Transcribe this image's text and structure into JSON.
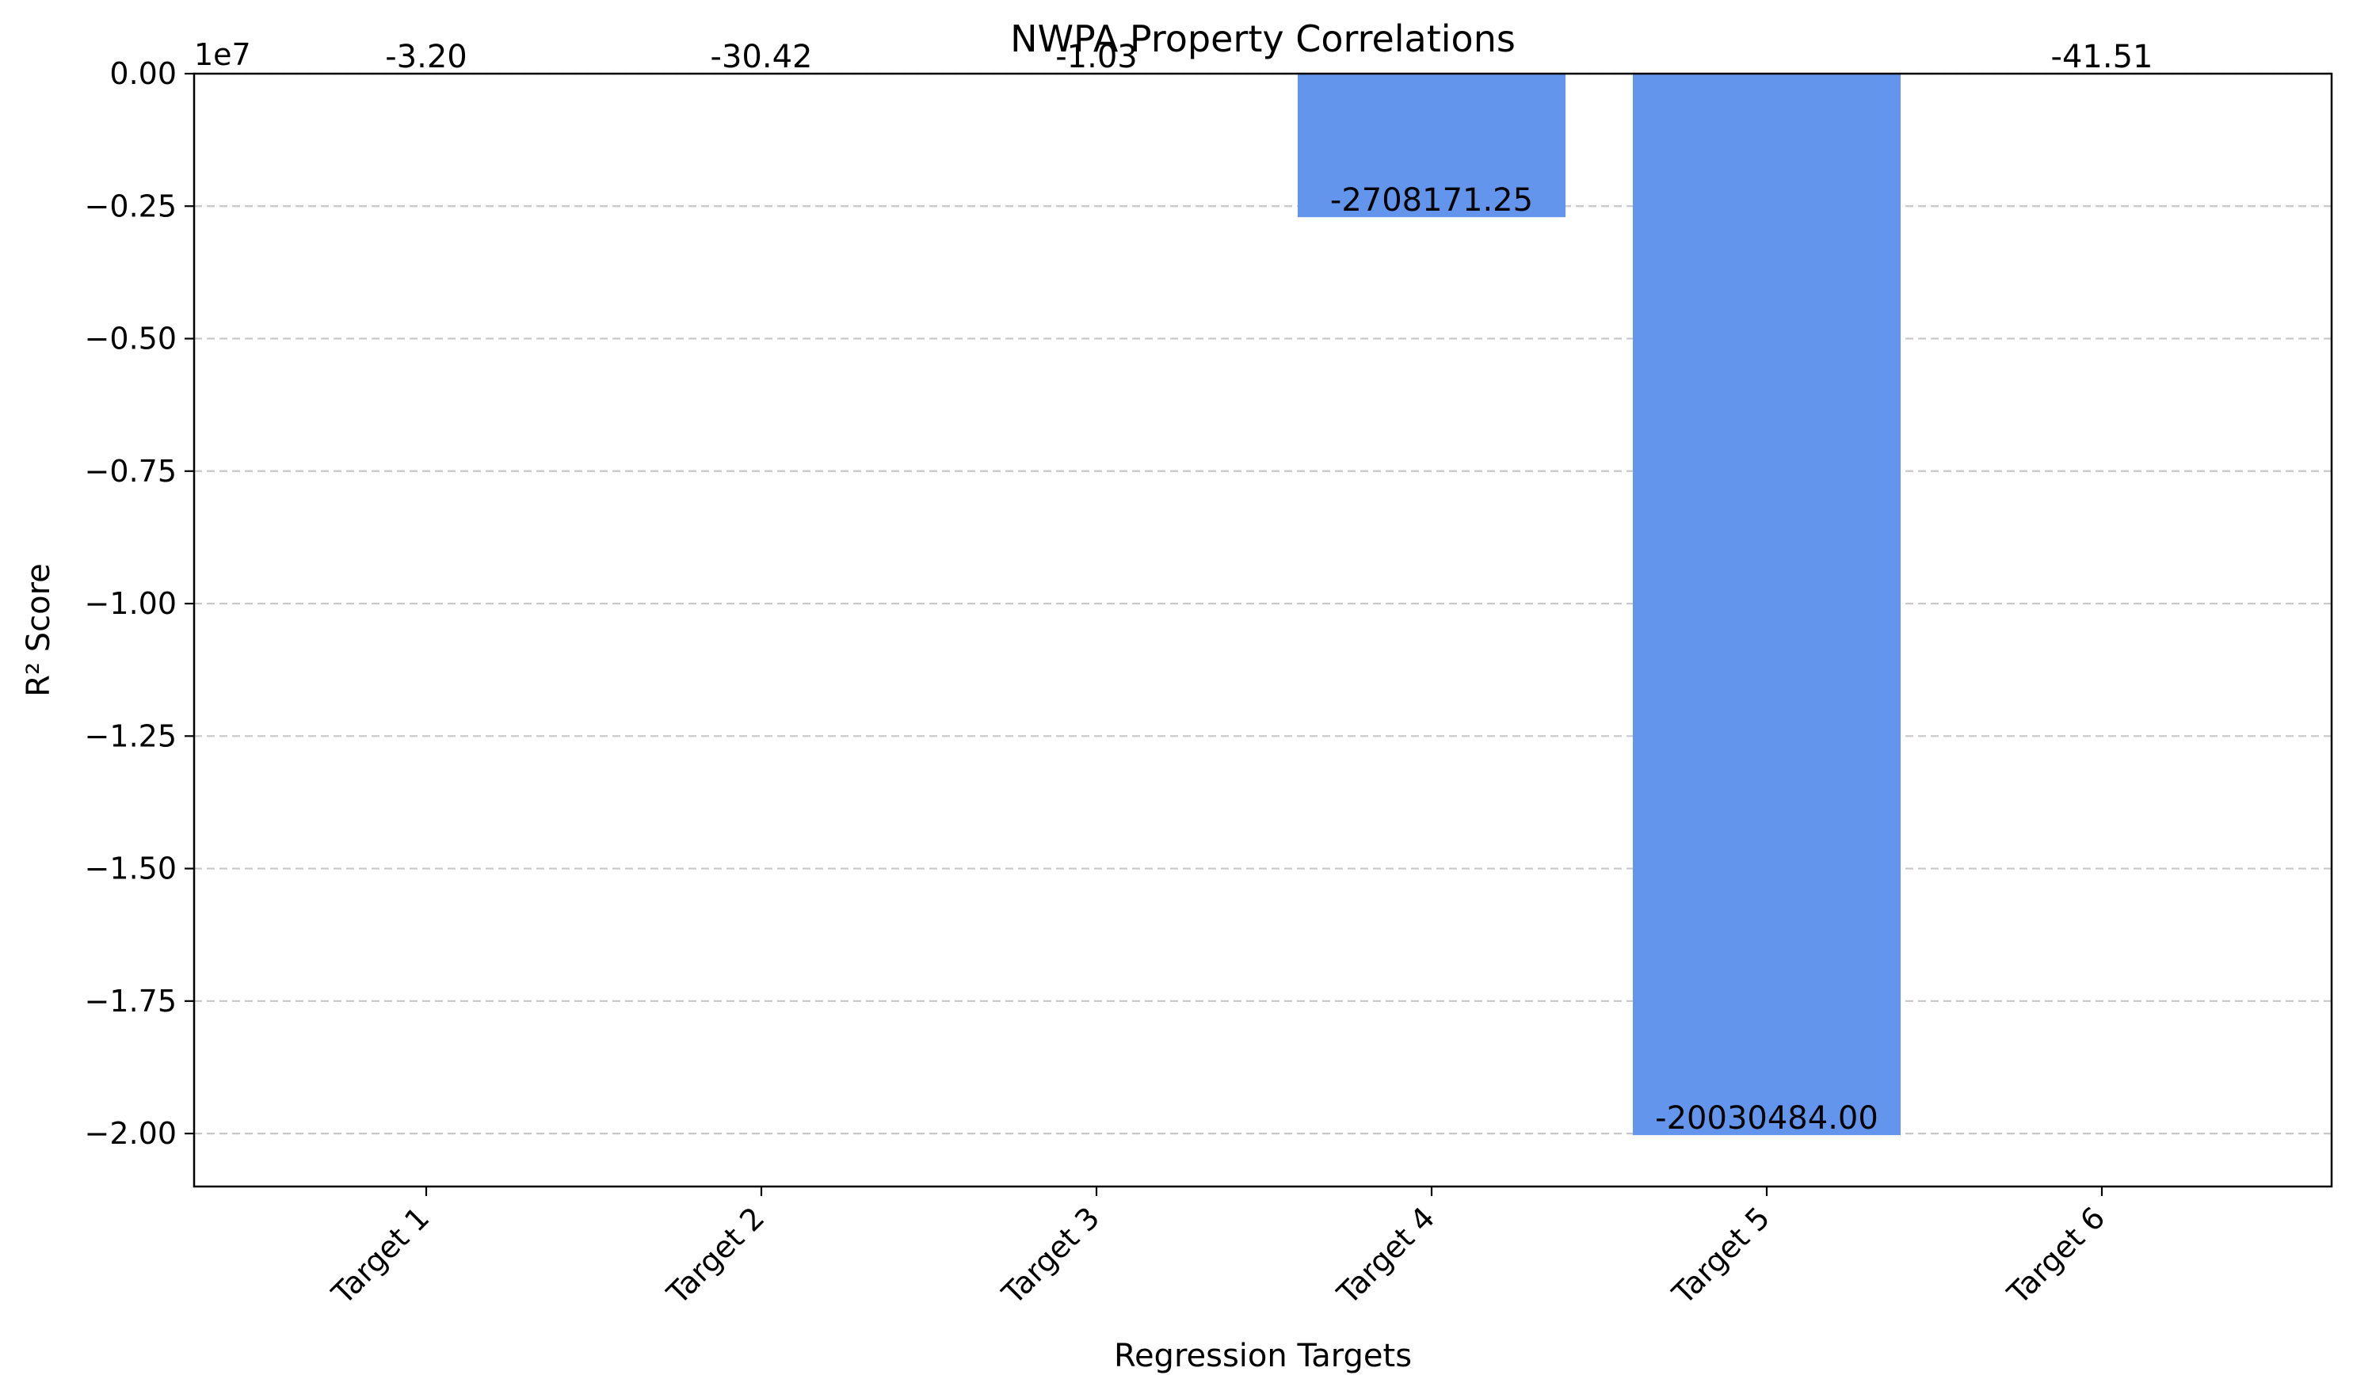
{
  "chart_data": {
    "type": "bar",
    "title": "NWPA Property Correlations",
    "xlabel": "Regression Targets",
    "ylabel": "R² Score",
    "categories": [
      "Target 1",
      "Target 2",
      "Target 3",
      "Target 4",
      "Target 5",
      "Target 6"
    ],
    "values": [
      -3.2,
      -30.42,
      -1.03,
      -2708171.25,
      -20030484.0,
      -41.51
    ],
    "data_labels": [
      "-3.20",
      "-30.42",
      "-1.03",
      "-2708171.25",
      "-20030484.00",
      "-41.51"
    ],
    "ylim": [
      -21000000,
      0
    ],
    "y_offset_text": "1e7",
    "yticks": [
      0,
      -2500000,
      -5000000,
      -7500000,
      -10000000,
      -12500000,
      -15000000,
      -17500000,
      -20000000
    ],
    "ytick_labels": [
      "0.00",
      "−0.25",
      "−0.50",
      "−0.75",
      "−1.00",
      "−1.25",
      "−1.50",
      "−1.75",
      "−2.00"
    ],
    "grid": "y-dashed",
    "bar_color": "#6495ED"
  }
}
